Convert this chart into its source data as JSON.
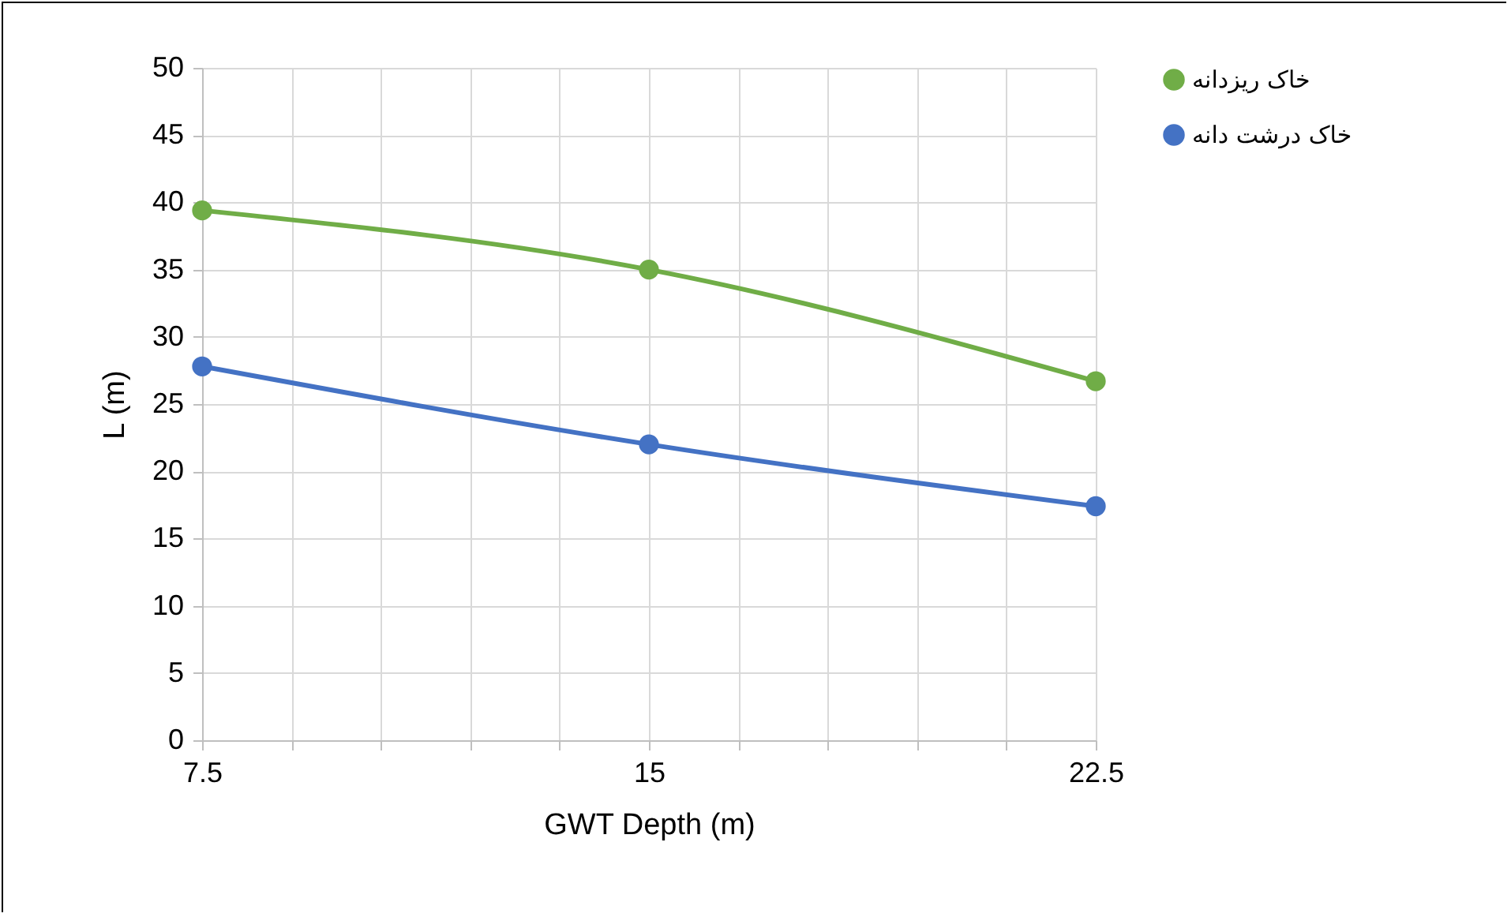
{
  "chart_data": {
    "type": "line",
    "xlabel": "GWT Depth (m)",
    "ylabel": "L (m)",
    "x": [
      7.5,
      15,
      22.5
    ],
    "series": [
      {
        "name": "خاک ریزدانه",
        "color": "#70ad47",
        "values": [
          39.4,
          35,
          26.7
        ]
      },
      {
        "name": "خاک درشت دانه",
        "color": "#4472c4",
        "values": [
          27.8,
          22,
          17.4
        ]
      }
    ],
    "xlim": [
      7.5,
      22.5
    ],
    "xticks": [
      7.5,
      {
        "value": 9,
        "label": null
      },
      {
        "value": 10.5,
        "label": null
      },
      {
        "value": 12,
        "label": null
      },
      {
        "value": 13.5,
        "label": null
      },
      15,
      {
        "value": 16.5,
        "label": null
      },
      {
        "value": 18,
        "label": null
      },
      {
        "value": 19.5,
        "label": null
      },
      {
        "value": 21,
        "label": null
      },
      22.5
    ],
    "ylim": [
      0,
      50
    ],
    "yticks": [
      0,
      5,
      10,
      15,
      20,
      25,
      30,
      35,
      40,
      45,
      50
    ],
    "grid": true,
    "legend": "right",
    "marker": "circle",
    "line_style": "solid"
  }
}
